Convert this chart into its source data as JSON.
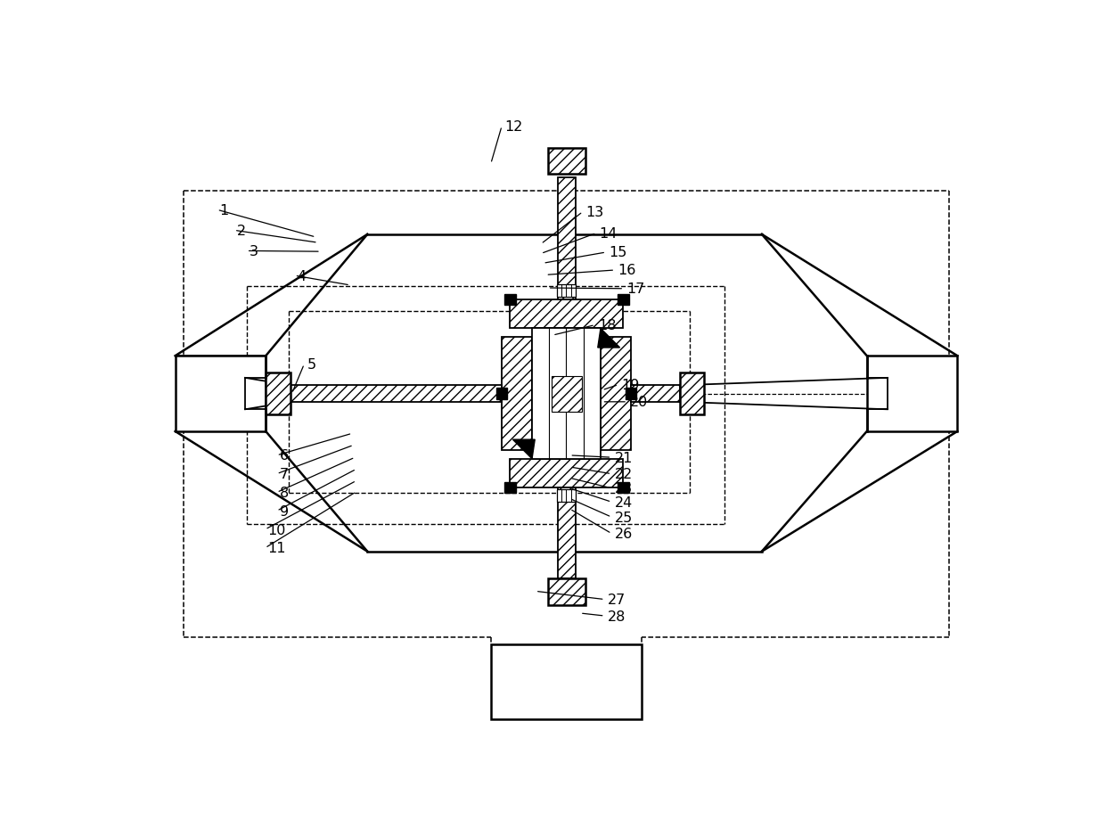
{
  "bg_color": "#ffffff",
  "line_color": "#000000",
  "fig_width": 12.4,
  "fig_height": 9.29,
  "dpi": 100
}
